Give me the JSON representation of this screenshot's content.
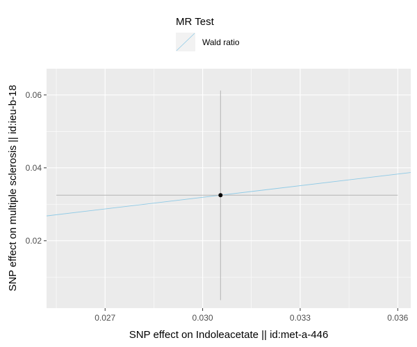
{
  "chart_data": {
    "type": "scatter",
    "xlabel": "SNP effect on Indoleacetate || id:met-a-446",
    "ylabel": "SNP effect on multiple sclerosis || id:ieu-b-18",
    "xlim": [
      0.0252,
      0.0364
    ],
    "ylim": [
      0.0015,
      0.0672
    ],
    "x_ticks": [
      0.027,
      0.03,
      0.033,
      0.036
    ],
    "x_tick_labels": [
      "0.027",
      "0.030",
      "0.033",
      "0.036"
    ],
    "y_ticks": [
      0.02,
      0.04,
      0.06
    ],
    "y_tick_labels": [
      "0.02",
      "0.04",
      "0.06"
    ],
    "grid": true,
    "points": [
      {
        "x": 0.03055,
        "y": 0.0325,
        "x_err_low": 0.0255,
        "x_err_high": 0.036,
        "y_err_low": 0.0037,
        "y_err_high": 0.0612
      }
    ],
    "lines": [
      {
        "name": "Wald ratio",
        "intercept": 0,
        "slope": 1.0637,
        "color": "#8ecae6"
      }
    ],
    "legend": {
      "title": "MR Test",
      "entries": [
        "Wald ratio"
      ],
      "position": "top"
    },
    "colors": {
      "panel": "#ebebeb",
      "grid": "#ffffff",
      "line": "#8ecae6",
      "errorbar": "#b3b3b3",
      "point": "#000000"
    }
  }
}
